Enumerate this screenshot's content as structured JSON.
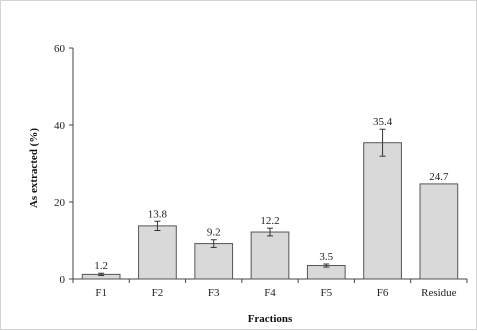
{
  "chart_data": {
    "type": "bar",
    "title": "",
    "xlabel": "Fractions",
    "ylabel": "As extracted (%)",
    "categories": [
      "F1",
      "F2",
      "F3",
      "F4",
      "F5",
      "F6",
      "Residue"
    ],
    "values": [
      1.2,
      13.8,
      9.2,
      12.2,
      3.5,
      35.4,
      24.7
    ],
    "data_labels": [
      "1.2",
      "13.8",
      "9.2",
      "12.2",
      "3.5",
      "35.4",
      "24.7"
    ],
    "errors": [
      0.3,
      1.2,
      1.0,
      1.0,
      0.4,
      3.5,
      null
    ],
    "ylim": [
      0,
      60
    ],
    "yticks": [
      0,
      20,
      40,
      60
    ],
    "grid": false,
    "legend": "none",
    "bar_color": "#d9d9d9",
    "bar_edge_color": "#555555"
  }
}
